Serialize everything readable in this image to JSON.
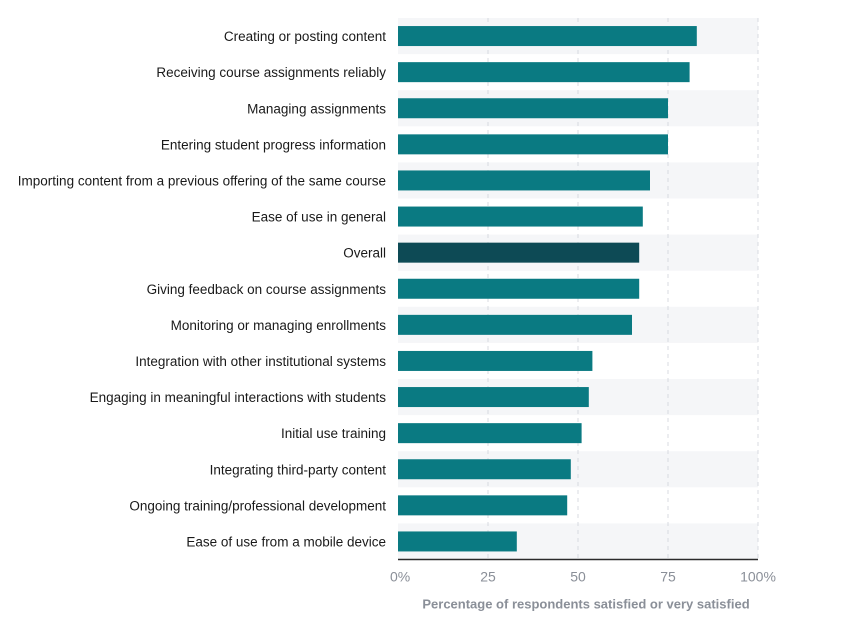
{
  "chart_data": {
    "type": "bar",
    "orientation": "horizontal",
    "categories": [
      "Creating or posting content",
      "Receiving course assignments reliably",
      "Managing assignments",
      "Entering student progress information",
      "Importing content from a previous offering of the same course",
      "Ease of use in general",
      "Overall",
      "Giving feedback on course assignments",
      "Monitoring or managing enrollments",
      "Integration with other institutional systems",
      "Engaging in meaningful interactions with students",
      "Initial use training",
      "Integrating third-party content",
      "Ongoing training/professional development",
      "Ease of use from a mobile device"
    ],
    "values": [
      83,
      81,
      75,
      75,
      70,
      68,
      67,
      67,
      65,
      54,
      53,
      51,
      48,
      47,
      33
    ],
    "highlight_category": "Overall",
    "xlabel": "Percentage of respondents satisfied or very satisfied",
    "ylabel": "",
    "xlim": [
      0,
      100
    ],
    "xticks": [
      0,
      25,
      50,
      75,
      100
    ],
    "xtick_labels": [
      "0%",
      "25",
      "50",
      "75",
      "100%"
    ],
    "grid": "vertical dashed",
    "colors": {
      "bar": "#0a7a82",
      "highlight": "#0d4a55",
      "band": "#f5f6f8",
      "axis_text": "#8a8f98"
    }
  }
}
